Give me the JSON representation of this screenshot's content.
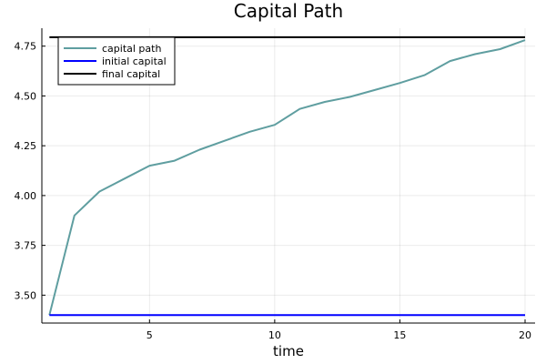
{
  "chart_data": {
    "type": "line",
    "title": "Capital Path",
    "xlabel": "time",
    "ylabel": "",
    "xlim": [
      0.7,
      20.4
    ],
    "ylim": [
      3.36,
      4.84
    ],
    "xticks": [
      5,
      10,
      15,
      20
    ],
    "xtick_labels": [
      "5",
      "10",
      "15",
      "20"
    ],
    "yticks": [
      3.5,
      3.75,
      4.0,
      4.25,
      4.5,
      4.75
    ],
    "ytick_labels": [
      "3.50",
      "3.75",
      "4.00",
      "4.25",
      "4.50",
      "4.75"
    ],
    "grid": true,
    "legend_position": "top-left",
    "series": [
      {
        "name": "capital path",
        "color": "#5f9ea0",
        "x": [
          1,
          2,
          3,
          4,
          5,
          6,
          7,
          8,
          9,
          10,
          11,
          12,
          13,
          14,
          15,
          16,
          17,
          18,
          19,
          20
        ],
        "values": [
          3.4,
          3.9,
          4.02,
          4.085,
          4.15,
          4.175,
          4.23,
          4.275,
          4.32,
          4.355,
          4.435,
          4.47,
          4.495,
          4.53,
          4.565,
          4.605,
          4.675,
          4.71,
          4.735,
          4.78
        ]
      },
      {
        "name": "initial capital",
        "color": "#0000ff",
        "x": [
          1,
          20
        ],
        "values": [
          3.4,
          3.4
        ]
      },
      {
        "name": "final capital",
        "color": "#000000",
        "x": [
          1,
          20
        ],
        "values": [
          4.795,
          4.795
        ]
      }
    ]
  }
}
